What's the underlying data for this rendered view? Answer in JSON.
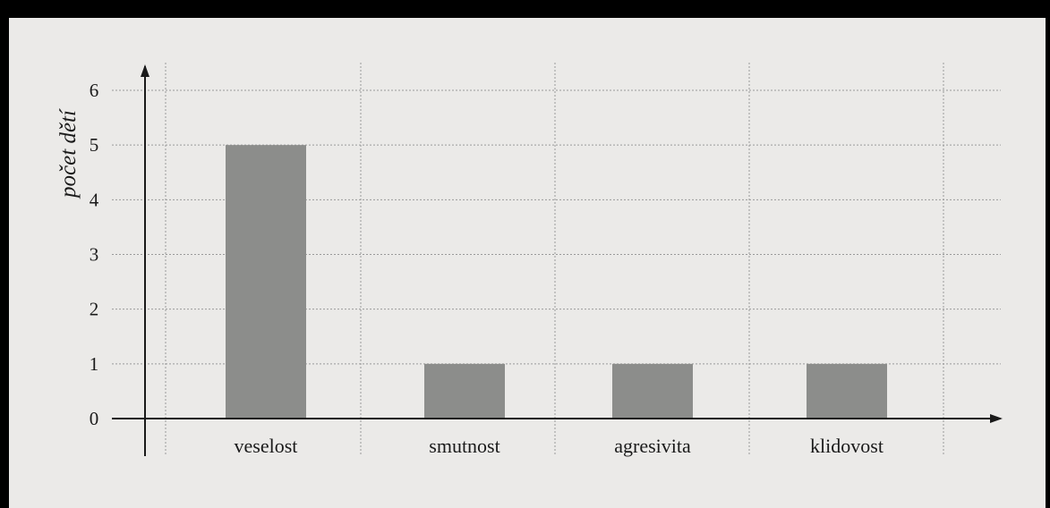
{
  "chart_data": {
    "type": "bar",
    "title": "",
    "xlabel": "",
    "ylabel": "počet dětí",
    "categories": [
      "veselost",
      "smutnost",
      "agresivita",
      "klidovost"
    ],
    "values": [
      5,
      1,
      1,
      1
    ],
    "ylim": [
      0,
      6
    ],
    "yticks": [
      "0",
      "1",
      "2",
      "3",
      "4",
      "5",
      "6"
    ],
    "grid": true,
    "bar_color": "#8c8d8b",
    "background_color": "#ebeae8",
    "frame_color": "#000000"
  }
}
